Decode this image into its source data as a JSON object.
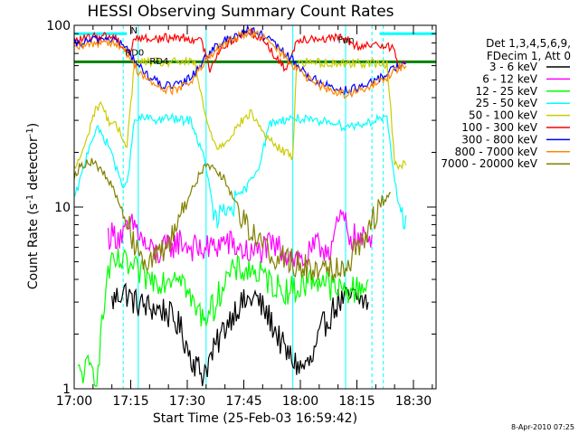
{
  "chart_data": {
    "type": "line",
    "title": "HESSI Observing Summary Count Rates",
    "xlabel": "Start Time (25-Feb-03 16:59:42)",
    "ylabel": "Count Rate (s",
    "ylabel_sup1": "-1",
    "ylabel_mid": " detector",
    "ylabel_sup2": "-1",
    "ylabel_end": ")",
    "y_scale": "log",
    "ylim": [
      1,
      100
    ],
    "xlim_minutes": [
      0,
      96
    ],
    "x_tick_labels": [
      "17:00",
      "17:15",
      "17:30",
      "17:45",
      "18:00",
      "18:15",
      "18:30"
    ],
    "y_tick_labels": [
      "1",
      "10",
      "100"
    ],
    "legend_header": [
      "Det 1,3,4,5,6,9,",
      "FDecim 1, Att 0"
    ],
    "legend_position": "right",
    "footer": "8-Apr-2010 07:25",
    "annotations": [
      {
        "text": "RD0",
        "x": 13.5,
        "y": 68
      },
      {
        "text": "RD4",
        "x": 20,
        "y": 61
      },
      {
        "text": "Fun",
        "x": 70,
        "y": 80
      },
      {
        "text": "N",
        "x": 15,
        "y": 90
      }
    ],
    "series": [
      {
        "name": "3 - 6 keV",
        "color": "#000000",
        "points": [
          [
            10,
            3
          ],
          [
            13,
            3.5
          ],
          [
            16,
            3
          ],
          [
            20,
            2.8
          ],
          [
            24,
            2.7
          ],
          [
            28,
            2.2
          ],
          [
            31,
            1.5
          ],
          [
            34,
            1.2
          ],
          [
            37,
            1.6
          ],
          [
            40,
            2.2
          ],
          [
            43,
            2.8
          ],
          [
            48,
            3.2
          ],
          [
            52,
            2.4
          ],
          [
            56,
            1.6
          ],
          [
            60,
            1.3
          ],
          [
            63,
            1.4
          ],
          [
            66,
            2.2
          ],
          [
            70,
            3
          ],
          [
            74,
            3.2
          ],
          [
            78,
            3
          ]
        ]
      },
      {
        "name": "6 - 12 keV",
        "color": "#ff00ff",
        "points": [
          [
            9,
            7
          ],
          [
            13,
            7
          ],
          [
            16,
            8
          ],
          [
            19,
            6
          ],
          [
            22,
            5.5
          ],
          [
            25,
            6
          ],
          [
            28,
            6.5
          ],
          [
            31,
            6
          ],
          [
            34,
            5.8
          ],
          [
            37,
            6
          ],
          [
            40,
            6.5
          ],
          [
            43,
            6
          ],
          [
            47,
            5.5
          ],
          [
            51,
            6
          ],
          [
            54,
            6
          ],
          [
            57,
            5.5
          ],
          [
            61,
            5
          ],
          [
            64,
            6
          ],
          [
            68,
            6
          ],
          [
            71,
            9
          ],
          [
            73,
            7
          ],
          [
            76,
            6.5
          ],
          [
            79,
            7
          ]
        ]
      },
      {
        "name": "12 - 25 keV",
        "color": "#00ff00",
        "points": [
          [
            1,
            1.2
          ],
          [
            4,
            1.3
          ],
          [
            6,
            1.2
          ],
          [
            9,
            4.5
          ],
          [
            12,
            5
          ],
          [
            16,
            4.5
          ],
          [
            20,
            4
          ],
          [
            24,
            4
          ],
          [
            28,
            4.5
          ],
          [
            31,
            3
          ],
          [
            34,
            2.5
          ],
          [
            37,
            2.8
          ],
          [
            40,
            4
          ],
          [
            43,
            4.5
          ],
          [
            47,
            4.5
          ],
          [
            51,
            4
          ],
          [
            55,
            3.5
          ],
          [
            59,
            3.5
          ],
          [
            63,
            4
          ],
          [
            66,
            4
          ],
          [
            69,
            3.5
          ],
          [
            72,
            3.5
          ],
          [
            75,
            3.5
          ],
          [
            78,
            4
          ]
        ]
      },
      {
        "name": "25 - 50 keV",
        "color": "#00ffff",
        "points": [
          [
            0,
            11
          ],
          [
            2,
            15
          ],
          [
            4,
            22
          ],
          [
            6,
            27
          ],
          [
            8,
            24
          ],
          [
            10,
            20
          ],
          [
            12,
            14
          ],
          [
            14,
            13
          ],
          [
            16,
            30
          ],
          [
            19,
            31
          ],
          [
            22,
            30
          ],
          [
            25,
            31
          ],
          [
            28,
            30
          ],
          [
            31,
            30
          ],
          [
            35,
            17
          ],
          [
            37,
            9
          ],
          [
            38,
            8.5
          ],
          [
            40,
            9.2
          ],
          [
            43,
            11
          ],
          [
            46,
            13
          ],
          [
            49,
            17
          ],
          [
            52,
            29
          ],
          [
            55,
            30
          ],
          [
            58,
            31
          ],
          [
            62,
            30
          ],
          [
            65,
            29
          ],
          [
            68,
            30
          ],
          [
            71,
            28
          ],
          [
            74,
            28
          ],
          [
            77,
            29
          ],
          [
            80,
            30
          ],
          [
            81,
            31
          ],
          [
            83,
            30
          ],
          [
            85,
            14
          ],
          [
            86,
            11
          ],
          [
            87,
            8.5
          ],
          [
            88,
            9
          ]
        ]
      },
      {
        "name": "50 - 100 keV",
        "color": "#cccc00",
        "points": [
          [
            0,
            16
          ],
          [
            3,
            22
          ],
          [
            5,
            32
          ],
          [
            7,
            38
          ],
          [
            9,
            30
          ],
          [
            11,
            28
          ],
          [
            14,
            22
          ],
          [
            16,
            62
          ],
          [
            20,
            63
          ],
          [
            24,
            62
          ],
          [
            28,
            63
          ],
          [
            32,
            62
          ],
          [
            35,
            30
          ],
          [
            38,
            21
          ],
          [
            41,
            24
          ],
          [
            44,
            29
          ],
          [
            47,
            33
          ],
          [
            50,
            26
          ],
          [
            53,
            22
          ],
          [
            56,
            20
          ],
          [
            58,
            19
          ],
          [
            59,
            62
          ],
          [
            63,
            63
          ],
          [
            67,
            62
          ],
          [
            71,
            62
          ],
          [
            75,
            62
          ],
          [
            79,
            62
          ],
          [
            81,
            61
          ],
          [
            83,
            62
          ],
          [
            85,
            18
          ],
          [
            86,
            17
          ],
          [
            88,
            17
          ]
        ]
      },
      {
        "name": "100 - 300 keV",
        "color": "#ff0000",
        "points": [
          [
            0,
            82
          ],
          [
            4,
            85
          ],
          [
            8,
            88
          ],
          [
            11,
            86
          ],
          [
            13,
            75
          ],
          [
            15,
            70
          ],
          [
            16,
            86
          ],
          [
            20,
            84
          ],
          [
            24,
            85
          ],
          [
            28,
            86
          ],
          [
            32,
            84
          ],
          [
            34,
            80
          ],
          [
            36,
            58
          ],
          [
            38,
            70
          ],
          [
            40,
            78
          ],
          [
            43,
            85
          ],
          [
            46,
            92
          ],
          [
            48,
            90
          ],
          [
            51,
            80
          ],
          [
            54,
            64
          ],
          [
            56,
            58
          ],
          [
            58,
            70
          ],
          [
            59,
            84
          ],
          [
            63,
            85
          ],
          [
            67,
            84
          ],
          [
            71,
            85
          ],
          [
            74,
            80
          ],
          [
            76,
            74
          ],
          [
            77,
            76
          ],
          [
            80,
            78
          ],
          [
            83,
            79
          ],
          [
            85,
            72
          ],
          [
            86,
            60
          ],
          [
            88,
            62
          ]
        ]
      },
      {
        "name": "300 - 800 keV",
        "color": "#0000ff",
        "points": [
          [
            0,
            78
          ],
          [
            4,
            82
          ],
          [
            8,
            85
          ],
          [
            11,
            83
          ],
          [
            14,
            74
          ],
          [
            17,
            60
          ],
          [
            20,
            52
          ],
          [
            23,
            47
          ],
          [
            26,
            46
          ],
          [
            29,
            48
          ],
          [
            32,
            55
          ],
          [
            35,
            68
          ],
          [
            39,
            80
          ],
          [
            43,
            89
          ],
          [
            46,
            94
          ],
          [
            49,
            90
          ],
          [
            52,
            82
          ],
          [
            56,
            70
          ],
          [
            60,
            58
          ],
          [
            63,
            51
          ],
          [
            66,
            48
          ],
          [
            69,
            45
          ],
          [
            72,
            44
          ],
          [
            75,
            45
          ],
          [
            78,
            47
          ],
          [
            81,
            51
          ],
          [
            84,
            57
          ],
          [
            86,
            60
          ],
          [
            88,
            62
          ]
        ]
      },
      {
        "name": "800 - 7000 keV",
        "color": "#ff8800",
        "points": [
          [
            0,
            74
          ],
          [
            4,
            78
          ],
          [
            8,
            82
          ],
          [
            11,
            80
          ],
          [
            14,
            70
          ],
          [
            17,
            56
          ],
          [
            20,
            49
          ],
          [
            23,
            45
          ],
          [
            26,
            44
          ],
          [
            29,
            46
          ],
          [
            32,
            52
          ],
          [
            35,
            64
          ],
          [
            39,
            76
          ],
          [
            43,
            86
          ],
          [
            46,
            92
          ],
          [
            49,
            88
          ],
          [
            52,
            80
          ],
          [
            56,
            67
          ],
          [
            60,
            55
          ],
          [
            63,
            49
          ],
          [
            66,
            46
          ],
          [
            69,
            43
          ],
          [
            72,
            42
          ],
          [
            75,
            43
          ],
          [
            78,
            45
          ],
          [
            81,
            49
          ],
          [
            84,
            54
          ],
          [
            86,
            58
          ],
          [
            88,
            60
          ]
        ]
      },
      {
        "name": "7000 - 20000 keV",
        "color": "#808000",
        "points": [
          [
            0,
            15
          ],
          [
            2,
            17
          ],
          [
            4,
            18
          ],
          [
            6,
            17
          ],
          [
            8,
            15
          ],
          [
            10,
            13
          ],
          [
            12,
            10.5
          ],
          [
            14,
            8
          ],
          [
            16,
            6.5
          ],
          [
            18,
            5.5
          ],
          [
            20,
            5
          ],
          [
            22,
            5.2
          ],
          [
            24,
            5.8
          ],
          [
            26,
            7
          ],
          [
            28,
            9
          ],
          [
            30,
            11
          ],
          [
            32,
            13.5
          ],
          [
            34,
            16
          ],
          [
            36,
            17
          ],
          [
            38,
            16
          ],
          [
            40,
            14
          ],
          [
            42,
            11.5
          ],
          [
            44,
            9.5
          ],
          [
            46,
            8
          ],
          [
            48,
            7
          ],
          [
            50,
            6.2
          ],
          [
            52,
            5.5
          ],
          [
            54,
            5.3
          ],
          [
            56,
            5.2
          ],
          [
            58,
            5
          ],
          [
            60,
            4.8
          ],
          [
            62,
            4.5
          ],
          [
            64,
            4.6
          ],
          [
            66,
            4.8
          ],
          [
            68,
            4.7
          ],
          [
            70,
            4.7
          ],
          [
            72,
            5
          ],
          [
            74,
            5.5
          ],
          [
            76,
            6.5
          ],
          [
            78,
            7.8
          ],
          [
            80,
            9
          ],
          [
            82,
            10.5
          ],
          [
            84,
            12
          ]
        ]
      }
    ],
    "reference_lines": [
      {
        "color": "#008000",
        "y": 63,
        "x": [
          0,
          96
        ]
      },
      {
        "color": "#00ffff",
        "y": 90,
        "x": [
          0,
          14
        ]
      },
      {
        "color": "#00ffff",
        "y": 90,
        "x": [
          81,
          96
        ]
      }
    ],
    "vertical_lines": [
      {
        "x": 13,
        "color": "#00ffff",
        "dashed": true
      },
      {
        "x": 17,
        "color": "#00ffff",
        "dashed": false
      },
      {
        "x": 35,
        "color": "#00ffff",
        "dashed": false
      },
      {
        "x": 58,
        "color": "#00ffff",
        "dashed": false
      },
      {
        "x": 72,
        "color": "#00ffff",
        "dashed": false
      },
      {
        "x": 79,
        "color": "#00ffff",
        "dashed": true
      },
      {
        "x": 82,
        "color": "#00ffff",
        "dashed": true
      }
    ]
  }
}
